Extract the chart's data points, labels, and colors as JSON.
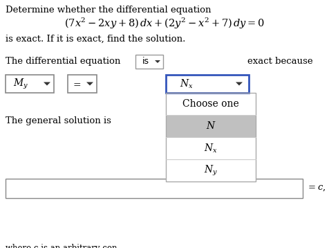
{
  "bg_color": "#ffffff",
  "title_line1": "Determine whether the differential equation",
  "title_line2": "$(7x^2 - 2xy + 8)\\, dx + (2y^2 - x^2 + 7)\\, dy = 0$",
  "title_line3": "is exact. If it is exact, find the solution.",
  "label_diff_eq": "The differential equation",
  "label_exact_because": "exact because",
  "label_general_solution": "The general solution is",
  "label_equals_c": "$= c,$",
  "footnote": "where c is an arbitrary constant",
  "menu_items": [
    "Choose one",
    "$N$",
    "$N_x$",
    "$N_y$"
  ],
  "item_colors": [
    "#ffffff",
    "#c0c0c0",
    "#ffffff",
    "#ffffff"
  ]
}
